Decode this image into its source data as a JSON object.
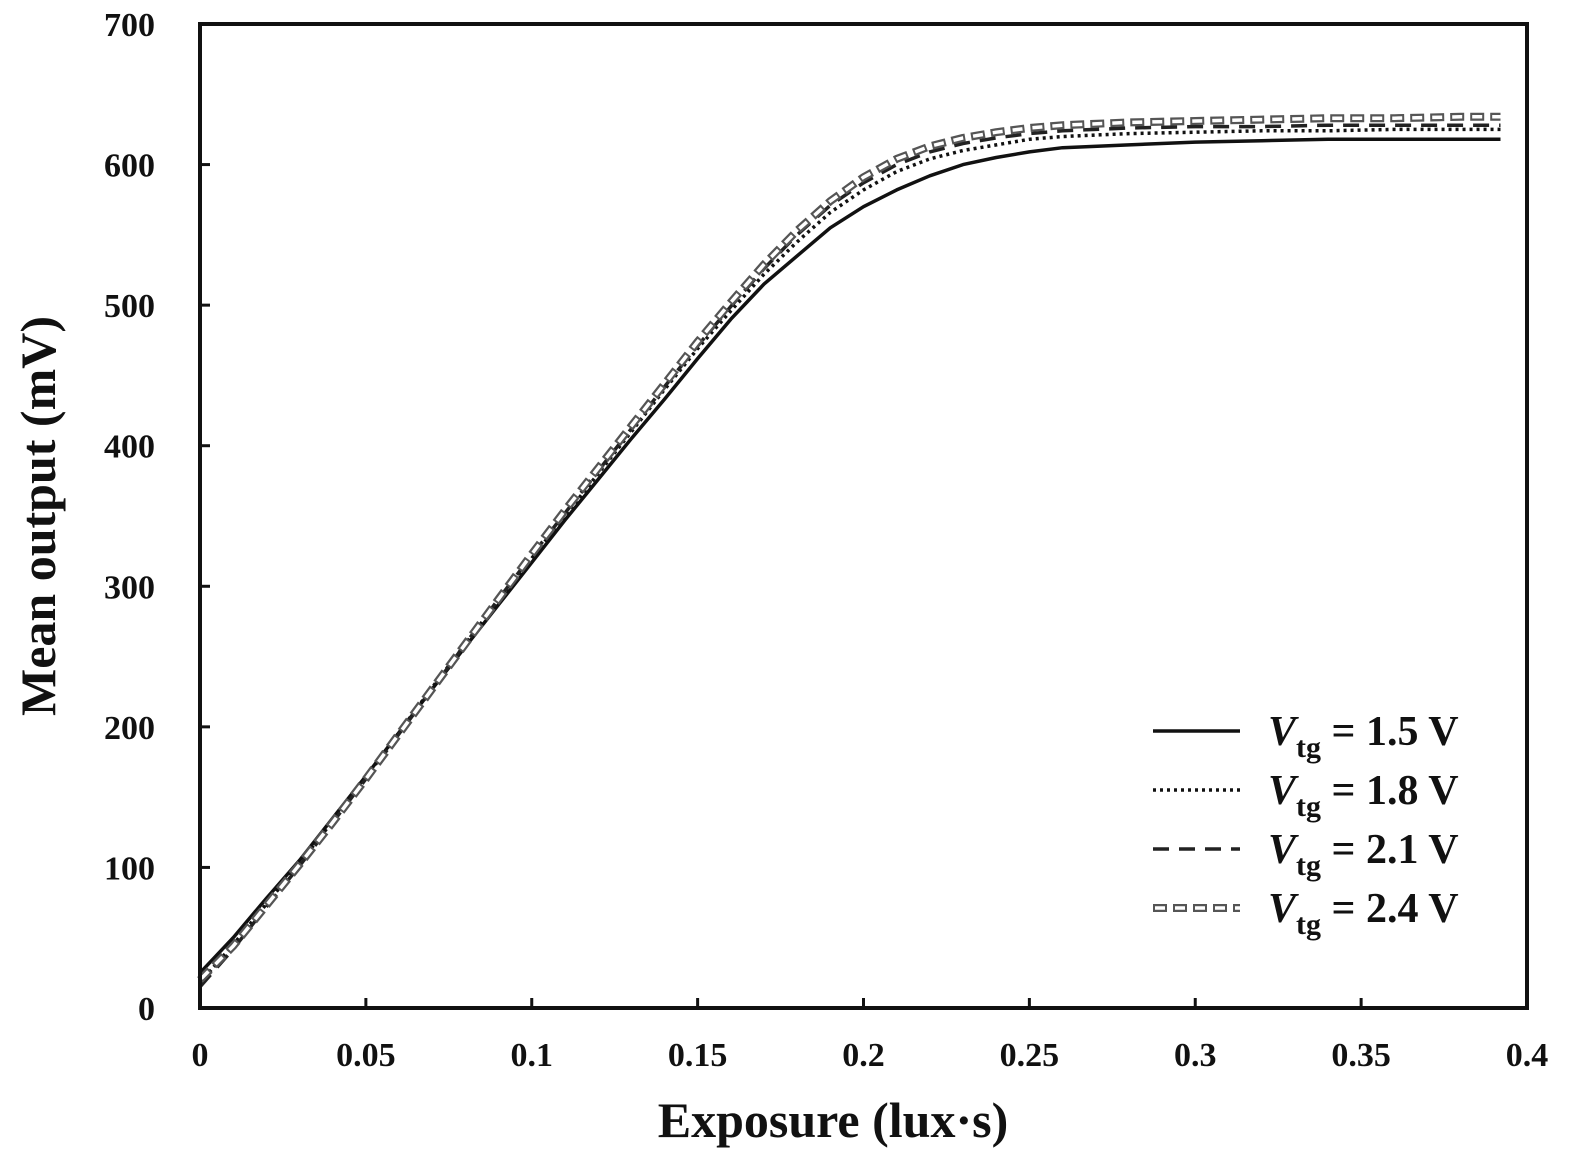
{
  "chart_data": {
    "type": "line",
    "title": "",
    "xlabel": "Exposure (lux·s)",
    "ylabel": "Mean output (mV)",
    "xlim": [
      0,
      0.4
    ],
    "ylim": [
      0,
      700
    ],
    "xticks": [
      "0",
      "0.05",
      "0.1",
      "0.15",
      "0.2",
      "0.25",
      "0.3",
      "0.35",
      "0.4"
    ],
    "yticks": [
      "0",
      "100",
      "200",
      "300",
      "400",
      "500",
      "600",
      "700"
    ],
    "grid": false,
    "legend_position": "bottom-right",
    "series": [
      {
        "name": "Vtg = 1.5 V",
        "legend": {
          "var": "V",
          "sub": "tg",
          "rest": " = 1.5 V"
        },
        "style": "solid",
        "x": [
          0,
          0.01,
          0.02,
          0.03,
          0.04,
          0.05,
          0.06,
          0.07,
          0.08,
          0.09,
          0.1,
          0.11,
          0.12,
          0.13,
          0.14,
          0.15,
          0.16,
          0.17,
          0.18,
          0.19,
          0.2,
          0.21,
          0.22,
          0.23,
          0.24,
          0.25,
          0.26,
          0.28,
          0.3,
          0.32,
          0.34,
          0.36,
          0.38,
          0.392
        ],
        "y": [
          25,
          50,
          78,
          105,
          135,
          165,
          196,
          227,
          257,
          287,
          317,
          347,
          376,
          405,
          433,
          462,
          490,
          515,
          535,
          555,
          570,
          582,
          592,
          600,
          605,
          609,
          612,
          614,
          616,
          617,
          618,
          618,
          618,
          618
        ]
      },
      {
        "name": "Vtg = 1.8 V",
        "legend": {
          "var": "V",
          "sub": "tg",
          "rest": " = 1.8 V"
        },
        "style": "dotted",
        "x": [
          0,
          0.01,
          0.02,
          0.03,
          0.04,
          0.05,
          0.06,
          0.07,
          0.08,
          0.09,
          0.1,
          0.11,
          0.12,
          0.13,
          0.14,
          0.15,
          0.16,
          0.17,
          0.18,
          0.19,
          0.2,
          0.21,
          0.22,
          0.23,
          0.24,
          0.25,
          0.26,
          0.28,
          0.3,
          0.32,
          0.34,
          0.36,
          0.38,
          0.392
        ],
        "y": [
          18,
          45,
          74,
          103,
          133,
          164,
          196,
          228,
          259,
          290,
          320,
          350,
          380,
          410,
          440,
          469,
          496,
          522,
          545,
          566,
          582,
          595,
          604,
          610,
          614,
          618,
          620,
          622,
          623,
          624,
          624,
          625,
          625,
          625
        ]
      },
      {
        "name": "Vtg = 2.1 V",
        "legend": {
          "var": "V",
          "sub": "tg",
          "rest": " = 2.1 V"
        },
        "style": "dashed",
        "x": [
          0,
          0.01,
          0.02,
          0.03,
          0.04,
          0.05,
          0.06,
          0.07,
          0.08,
          0.09,
          0.1,
          0.11,
          0.12,
          0.13,
          0.14,
          0.15,
          0.16,
          0.17,
          0.18,
          0.19,
          0.2,
          0.21,
          0.22,
          0.23,
          0.24,
          0.25,
          0.26,
          0.28,
          0.3,
          0.32,
          0.34,
          0.36,
          0.38,
          0.392
        ],
        "y": [
          15,
          42,
          72,
          101,
          132,
          163,
          195,
          227,
          259,
          291,
          322,
          352,
          382,
          412,
          442,
          471,
          499,
          526,
          550,
          571,
          587,
          600,
          609,
          615,
          619,
          622,
          624,
          626,
          627,
          627,
          628,
          628,
          628,
          628
        ]
      },
      {
        "name": "Vtg = 2.4 V",
        "legend": {
          "var": "V",
          "sub": "tg",
          "rest": " = 2.4 V"
        },
        "style": "double",
        "x": [
          0,
          0.01,
          0.02,
          0.03,
          0.04,
          0.05,
          0.06,
          0.07,
          0.08,
          0.09,
          0.1,
          0.11,
          0.12,
          0.13,
          0.14,
          0.15,
          0.16,
          0.17,
          0.18,
          0.19,
          0.2,
          0.21,
          0.22,
          0.23,
          0.24,
          0.25,
          0.26,
          0.28,
          0.3,
          0.32,
          0.34,
          0.36,
          0.38,
          0.392
        ],
        "y": [
          20,
          44,
          73,
          102,
          132,
          163,
          195,
          227,
          259,
          291,
          323,
          354,
          384,
          414,
          444,
          474,
          502,
          529,
          553,
          574,
          591,
          604,
          613,
          619,
          623,
          626,
          628,
          630,
          631,
          632,
          633,
          633,
          634,
          634
        ]
      }
    ]
  }
}
